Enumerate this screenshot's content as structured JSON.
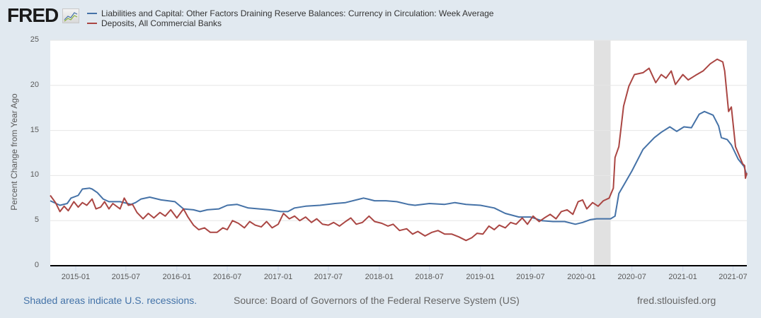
{
  "logo": {
    "text": "FRED"
  },
  "colors": {
    "series1": "#4572a7",
    "series2": "#aa4643",
    "recession": "#e1e1e1",
    "grid": "#e6e6e6",
    "background": "#e1e9f0",
    "plot": "#ffffff"
  },
  "footer": {
    "recession_note": "Shaded areas indicate U.S. recessions.",
    "source": "Source: Board of Governors of the Federal Reserve System (US)",
    "site": "fred.stlouisfed.org"
  },
  "chart_data": {
    "type": "line",
    "title": "",
    "xlabel": "",
    "ylabel": "Percent Change from Year Ago",
    "ylim": [
      0,
      25
    ],
    "xlim": [
      "2014-10-01",
      "2021-08-20"
    ],
    "grid": true,
    "legend_position": "top-left",
    "yticks": [
      "0",
      "5",
      "10",
      "15",
      "20",
      "25"
    ],
    "xticks": [
      "2015-01",
      "2015-07",
      "2016-01",
      "2016-07",
      "2017-01",
      "2017-07",
      "2018-01",
      "2018-07",
      "2019-01",
      "2019-07",
      "2020-01",
      "2020-07",
      "2021-01",
      "2021-07"
    ],
    "recessions": [
      {
        "start": "2020-02-15",
        "end": "2020-04-15"
      }
    ],
    "series": [
      {
        "name": "Liabilities and Capital: Other Factors Draining Reserve Balances: Currency in Circulation: Week Average",
        "color": "#4572a7",
        "points": [
          [
            "2014-10-01",
            7.2
          ],
          [
            "2014-11-05",
            6.7
          ],
          [
            "2014-12-01",
            6.9
          ],
          [
            "2014-12-15",
            7.5
          ],
          [
            "2015-01-10",
            7.8
          ],
          [
            "2015-01-25",
            8.5
          ],
          [
            "2015-02-20",
            8.6
          ],
          [
            "2015-03-01",
            8.5
          ],
          [
            "2015-03-20",
            8.1
          ],
          [
            "2015-04-10",
            7.4
          ],
          [
            "2015-05-01",
            7.1
          ],
          [
            "2015-06-10",
            7.1
          ],
          [
            "2015-07-20",
            6.8
          ],
          [
            "2015-08-05",
            7.0
          ],
          [
            "2015-08-25",
            7.4
          ],
          [
            "2015-09-25",
            7.6
          ],
          [
            "2015-11-05",
            7.3
          ],
          [
            "2015-12-25",
            7.1
          ],
          [
            "2016-01-25",
            6.3
          ],
          [
            "2016-03-01",
            6.2
          ],
          [
            "2016-03-25",
            6.0
          ],
          [
            "2016-04-20",
            6.2
          ],
          [
            "2016-06-01",
            6.3
          ],
          [
            "2016-07-01",
            6.7
          ],
          [
            "2016-08-05",
            6.8
          ],
          [
            "2016-09-15",
            6.4
          ],
          [
            "2016-10-25",
            6.3
          ],
          [
            "2016-12-01",
            6.2
          ],
          [
            "2017-01-10",
            6.0
          ],
          [
            "2017-02-05",
            6.0
          ],
          [
            "2017-03-01",
            6.4
          ],
          [
            "2017-04-10",
            6.6
          ],
          [
            "2017-06-01",
            6.7
          ],
          [
            "2017-07-25",
            6.9
          ],
          [
            "2017-09-01",
            7.0
          ],
          [
            "2017-11-05",
            7.5
          ],
          [
            "2017-11-20",
            7.4
          ],
          [
            "2017-12-15",
            7.2
          ],
          [
            "2018-01-25",
            7.2
          ],
          [
            "2018-03-05",
            7.1
          ],
          [
            "2018-04-15",
            6.8
          ],
          [
            "2018-05-10",
            6.7
          ],
          [
            "2018-07-01",
            6.9
          ],
          [
            "2018-08-25",
            6.8
          ],
          [
            "2018-10-01",
            7.0
          ],
          [
            "2018-11-10",
            6.8
          ],
          [
            "2019-01-01",
            6.7
          ],
          [
            "2019-02-20",
            6.4
          ],
          [
            "2019-04-01",
            5.8
          ],
          [
            "2019-04-25",
            5.6
          ],
          [
            "2019-05-20",
            5.4
          ],
          [
            "2019-07-01",
            5.4
          ],
          [
            "2019-08-10",
            5.0
          ],
          [
            "2019-09-20",
            4.9
          ],
          [
            "2019-11-01",
            4.9
          ],
          [
            "2019-12-10",
            4.6
          ],
          [
            "2020-01-05",
            4.8
          ],
          [
            "2020-02-01",
            5.1
          ],
          [
            "2020-02-25",
            5.2
          ],
          [
            "2020-04-15",
            5.2
          ],
          [
            "2020-05-01",
            5.5
          ],
          [
            "2020-05-15",
            8.0
          ],
          [
            "2020-06-01",
            8.9
          ],
          [
            "2020-07-01",
            10.5
          ],
          [
            "2020-08-10",
            12.9
          ],
          [
            "2020-09-20",
            14.2
          ],
          [
            "2020-10-15",
            14.8
          ],
          [
            "2020-11-15",
            15.4
          ],
          [
            "2020-12-10",
            14.9
          ],
          [
            "2021-01-05",
            15.4
          ],
          [
            "2021-02-01",
            15.3
          ],
          [
            "2021-03-01",
            16.8
          ],
          [
            "2021-03-20",
            17.1
          ],
          [
            "2021-04-20",
            16.7
          ],
          [
            "2021-05-10",
            15.5
          ],
          [
            "2021-05-20",
            14.2
          ],
          [
            "2021-06-10",
            14.0
          ],
          [
            "2021-06-25",
            13.4
          ],
          [
            "2021-07-20",
            11.8
          ],
          [
            "2021-08-10",
            11.0
          ],
          [
            "2021-08-20",
            10.0
          ]
        ]
      },
      {
        "name": "Deposits, All Commercial Banks",
        "color": "#aa4643",
        "points": [
          [
            "2014-10-01",
            7.8
          ],
          [
            "2014-10-20",
            7.0
          ],
          [
            "2014-11-05",
            6.0
          ],
          [
            "2014-11-20",
            6.6
          ],
          [
            "2014-12-05",
            6.1
          ],
          [
            "2014-12-25",
            7.1
          ],
          [
            "2015-01-10",
            6.5
          ],
          [
            "2015-01-25",
            7.0
          ],
          [
            "2015-02-10",
            6.7
          ],
          [
            "2015-03-01",
            7.4
          ],
          [
            "2015-03-15",
            6.3
          ],
          [
            "2015-04-01",
            6.5
          ],
          [
            "2015-04-15",
            7.1
          ],
          [
            "2015-05-01",
            6.3
          ],
          [
            "2015-05-15",
            6.9
          ],
          [
            "2015-06-10",
            6.3
          ],
          [
            "2015-06-25",
            7.5
          ],
          [
            "2015-07-10",
            6.7
          ],
          [
            "2015-07-25",
            6.8
          ],
          [
            "2015-08-10",
            5.9
          ],
          [
            "2015-09-01",
            5.2
          ],
          [
            "2015-09-20",
            5.8
          ],
          [
            "2015-10-10",
            5.3
          ],
          [
            "2015-11-01",
            5.9
          ],
          [
            "2015-11-20",
            5.5
          ],
          [
            "2015-12-10",
            6.2
          ],
          [
            "2016-01-01",
            5.3
          ],
          [
            "2016-01-25",
            6.3
          ],
          [
            "2016-02-10",
            5.4
          ],
          [
            "2016-03-01",
            4.5
          ],
          [
            "2016-03-20",
            4.0
          ],
          [
            "2016-04-10",
            4.2
          ],
          [
            "2016-05-01",
            3.7
          ],
          [
            "2016-05-25",
            3.7
          ],
          [
            "2016-06-15",
            4.2
          ],
          [
            "2016-07-01",
            4.0
          ],
          [
            "2016-07-20",
            5.0
          ],
          [
            "2016-08-10",
            4.7
          ],
          [
            "2016-09-01",
            4.2
          ],
          [
            "2016-09-20",
            4.9
          ],
          [
            "2016-10-10",
            4.5
          ],
          [
            "2016-11-01",
            4.3
          ],
          [
            "2016-11-20",
            4.9
          ],
          [
            "2016-12-10",
            4.2
          ],
          [
            "2017-01-01",
            4.6
          ],
          [
            "2017-01-20",
            5.8
          ],
          [
            "2017-02-10",
            5.2
          ],
          [
            "2017-03-01",
            5.5
          ],
          [
            "2017-03-20",
            5.0
          ],
          [
            "2017-04-10",
            5.4
          ],
          [
            "2017-05-01",
            4.8
          ],
          [
            "2017-05-20",
            5.2
          ],
          [
            "2017-06-10",
            4.6
          ],
          [
            "2017-07-01",
            4.5
          ],
          [
            "2017-07-20",
            4.8
          ],
          [
            "2017-08-10",
            4.4
          ],
          [
            "2017-09-01",
            4.9
          ],
          [
            "2017-09-20",
            5.3
          ],
          [
            "2017-10-10",
            4.6
          ],
          [
            "2017-11-01",
            4.8
          ],
          [
            "2017-11-25",
            5.5
          ],
          [
            "2017-12-15",
            4.9
          ],
          [
            "2018-01-10",
            4.7
          ],
          [
            "2018-02-01",
            4.4
          ],
          [
            "2018-02-20",
            4.6
          ],
          [
            "2018-03-15",
            3.9
          ],
          [
            "2018-04-10",
            4.1
          ],
          [
            "2018-05-01",
            3.5
          ],
          [
            "2018-05-20",
            3.8
          ],
          [
            "2018-06-15",
            3.3
          ],
          [
            "2018-07-10",
            3.7
          ],
          [
            "2018-08-01",
            3.9
          ],
          [
            "2018-08-25",
            3.5
          ],
          [
            "2018-09-20",
            3.5
          ],
          [
            "2018-10-15",
            3.2
          ],
          [
            "2018-11-10",
            2.8
          ],
          [
            "2018-12-01",
            3.1
          ],
          [
            "2018-12-20",
            3.6
          ],
          [
            "2019-01-10",
            3.5
          ],
          [
            "2019-02-01",
            4.4
          ],
          [
            "2019-02-20",
            4.0
          ],
          [
            "2019-03-10",
            4.5
          ],
          [
            "2019-04-01",
            4.2
          ],
          [
            "2019-04-20",
            4.8
          ],
          [
            "2019-05-10",
            4.6
          ],
          [
            "2019-06-01",
            5.3
          ],
          [
            "2019-06-20",
            4.6
          ],
          [
            "2019-07-10",
            5.5
          ],
          [
            "2019-08-01",
            4.9
          ],
          [
            "2019-08-20",
            5.3
          ],
          [
            "2019-09-10",
            5.7
          ],
          [
            "2019-10-01",
            5.2
          ],
          [
            "2019-10-20",
            6.0
          ],
          [
            "2019-11-10",
            6.2
          ],
          [
            "2019-12-01",
            5.7
          ],
          [
            "2019-12-20",
            7.1
          ],
          [
            "2020-01-05",
            7.3
          ],
          [
            "2020-01-20",
            6.3
          ],
          [
            "2020-02-10",
            7.0
          ],
          [
            "2020-03-01",
            6.6
          ],
          [
            "2020-03-20",
            7.2
          ],
          [
            "2020-04-10",
            7.5
          ],
          [
            "2020-04-25",
            8.6
          ],
          [
            "2020-05-01",
            12.0
          ],
          [
            "2020-05-15",
            13.2
          ],
          [
            "2020-06-01",
            17.7
          ],
          [
            "2020-06-20",
            19.9
          ],
          [
            "2020-07-10",
            21.2
          ],
          [
            "2020-08-10",
            21.4
          ],
          [
            "2020-09-01",
            21.9
          ],
          [
            "2020-09-25",
            20.3
          ],
          [
            "2020-10-15",
            21.2
          ],
          [
            "2020-11-01",
            20.8
          ],
          [
            "2020-11-20",
            21.6
          ],
          [
            "2020-12-05",
            20.1
          ],
          [
            "2021-01-01",
            21.2
          ],
          [
            "2021-01-20",
            20.6
          ],
          [
            "2021-02-15",
            21.1
          ],
          [
            "2021-03-15",
            21.6
          ],
          [
            "2021-04-10",
            22.4
          ],
          [
            "2021-05-05",
            22.9
          ],
          [
            "2021-05-25",
            22.6
          ],
          [
            "2021-06-01",
            21.6
          ],
          [
            "2021-06-15",
            17.1
          ],
          [
            "2021-06-25",
            17.6
          ],
          [
            "2021-07-10",
            13.2
          ],
          [
            "2021-08-05",
            11.3
          ],
          [
            "2021-08-12",
            11.1
          ],
          [
            "2021-08-15",
            9.7
          ],
          [
            "2021-08-20",
            10.3
          ]
        ]
      }
    ]
  }
}
